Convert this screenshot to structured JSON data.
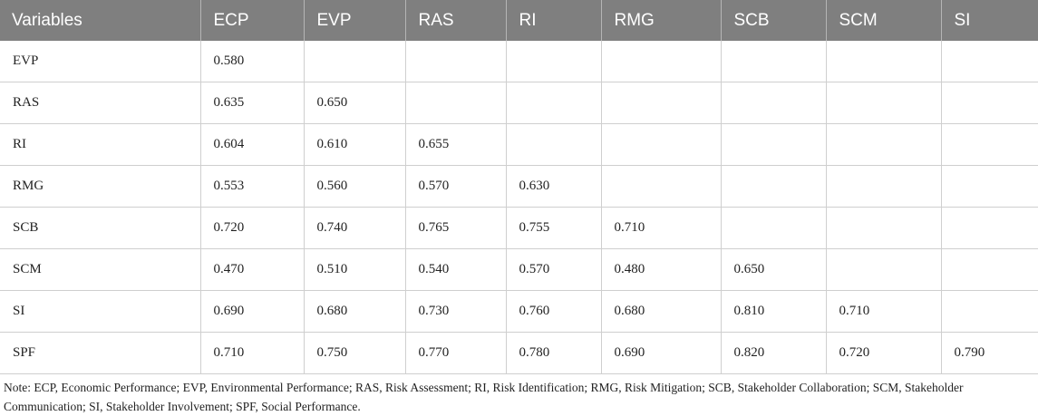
{
  "table": {
    "headers": [
      "Variables",
      "ECP",
      "EVP",
      "RAS",
      "RI",
      "RMG",
      "SCB",
      "SCM",
      "SI"
    ],
    "rows": [
      [
        "EVP",
        "0.580",
        "",
        "",
        "",
        "",
        "",
        "",
        ""
      ],
      [
        "RAS",
        "0.635",
        "0.650",
        "",
        "",
        "",
        "",
        "",
        ""
      ],
      [
        "RI",
        "0.604",
        "0.610",
        "0.655",
        "",
        "",
        "",
        "",
        ""
      ],
      [
        "RMG",
        "0.553",
        "0.560",
        "0.570",
        "0.630",
        "",
        "",
        "",
        ""
      ],
      [
        "SCB",
        "0.720",
        "0.740",
        "0.765",
        "0.755",
        "0.710",
        "",
        "",
        ""
      ],
      [
        "SCM",
        "0.470",
        "0.510",
        "0.540",
        "0.570",
        "0.480",
        "0.650",
        "",
        ""
      ],
      [
        "SI",
        "0.690",
        "0.680",
        "0.730",
        "0.760",
        "0.680",
        "0.810",
        "0.710",
        ""
      ],
      [
        "SPF",
        "0.710",
        "0.750",
        "0.770",
        "0.780",
        "0.690",
        "0.820",
        "0.720",
        "0.790"
      ]
    ]
  },
  "note": "Note: ECP, Economic Performance; EVP, Environmental Performance; RAS, Risk Assessment; RI, Risk Identification; RMG, Risk Mitigation; SCB, Stakeholder Collaboration; SCM, Stakeholder Communication; SI, Stakeholder Involvement; SPF, Social Performance.",
  "colors": {
    "header_bg": "#7f7f7f",
    "header_text": "#ffffff",
    "rule": "#cfcfcf"
  }
}
